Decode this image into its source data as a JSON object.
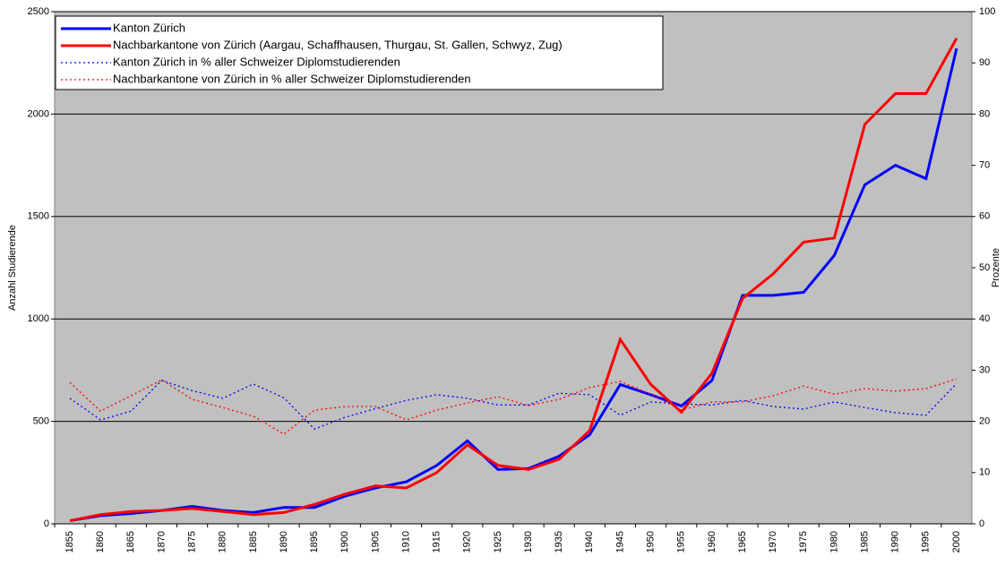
{
  "chart_data": {
    "type": "line",
    "categories": [
      "1855",
      "1860",
      "1865",
      "1870",
      "1875",
      "1880",
      "1885",
      "1890",
      "1895",
      "1900",
      "1905",
      "1910",
      "1915",
      "1920",
      "1925",
      "1930",
      "1935",
      "1940",
      "1945",
      "1950",
      "1955",
      "1960",
      "1965",
      "1970",
      "1975",
      "1980",
      "1985",
      "1990",
      "1995",
      "2000"
    ],
    "y_label": "Anzahl Studierende",
    "y2_label": "Prozente",
    "ylim": [
      0,
      2500
    ],
    "yticks": [
      0,
      500,
      1000,
      1500,
      2000,
      2500
    ],
    "y2lim": [
      0,
      100
    ],
    "y2ticks": [
      0,
      10,
      20,
      30,
      40,
      50,
      60,
      70,
      80,
      90,
      100
    ],
    "grid": true,
    "legend": "top-left",
    "series": [
      {
        "name": "Kanton Zürich",
        "color": "#0000ff",
        "style": "solid",
        "values": [
          15,
          40,
          50,
          65,
          85,
          65,
          55,
          80,
          80,
          135,
          175,
          205,
          285,
          405,
          265,
          270,
          330,
          435,
          680,
          630,
          575,
          700,
          1115,
          1115,
          1130,
          1310,
          1655,
          1750,
          1685,
          2320
        ]
      },
      {
        "name": "Nachbarkantone von Zürich (Aargau, Schaffhausen, Thurgau, St. Gallen, Schwyz, Zug)",
        "color": "#ff0000",
        "style": "solid",
        "values": [
          15,
          45,
          60,
          65,
          75,
          60,
          45,
          55,
          95,
          145,
          185,
          175,
          250,
          385,
          285,
          265,
          315,
          455,
          900,
          680,
          545,
          735,
          1100,
          1220,
          1375,
          1395,
          1950,
          2100,
          2100,
          2370
        ]
      },
      {
        "name": "Kanton Zürich in % aller Schweizer Diplomstudierenden",
        "color": "#0000ff",
        "style": "dotted",
        "axis": "y2",
        "values": [
          24.5,
          20.3,
          22,
          28,
          26,
          24.5,
          27.3,
          24.6,
          18.5,
          20.8,
          22.5,
          24.1,
          25.2,
          24.5,
          23.2,
          23.2,
          25.5,
          25.2,
          21.2,
          23.8,
          23.4,
          23.2,
          24.1,
          22.9,
          22.4,
          23.8,
          22.7,
          21.7,
          21.2,
          27.4
        ]
      },
      {
        "name": "Nachbarkantone von Zürich in % aller Schweizer Diplomstudierenden",
        "color": "#ff0000",
        "style": "dotted",
        "axis": "y2",
        "values": [
          27.6,
          22,
          25,
          28.1,
          24.3,
          22.7,
          21,
          17.5,
          22.2,
          22.9,
          22.9,
          20.3,
          22.2,
          23.6,
          24.8,
          23.1,
          24.3,
          26.6,
          27.8,
          25.3,
          22.2,
          23.8,
          23.8,
          25,
          26.9,
          25.3,
          26.4,
          25.9,
          26.4,
          28.3
        ]
      }
    ]
  }
}
